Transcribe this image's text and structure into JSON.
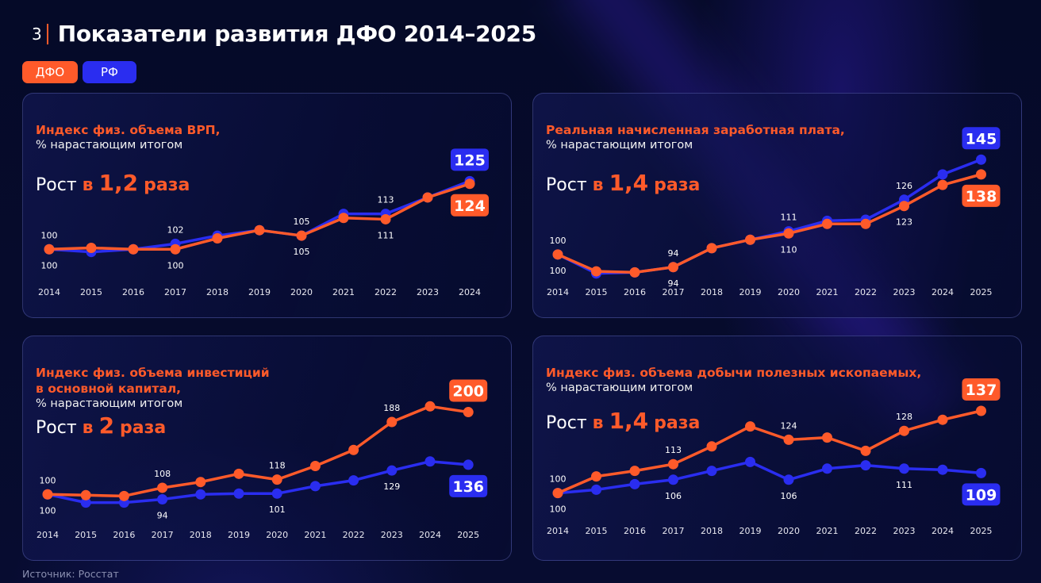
{
  "page": {
    "number": "3",
    "title": "Показатели развития ДФО 2014–2025",
    "source": "Источник: Росстат"
  },
  "legend": [
    {
      "label": "ДФО",
      "color": "#ff5a2a"
    },
    {
      "label": "РФ",
      "color": "#2a2df0"
    }
  ],
  "colors": {
    "dfo": "#ff5a2a",
    "rf": "#2a2df0",
    "text": "#ffffff",
    "background": "#060b2c"
  },
  "chart_data": [
    {
      "id": "grp",
      "type": "line",
      "title": "Индекс физ. объема ВРП,",
      "subtitle": "% нарастающим итогом",
      "growth": {
        "prefix": "Рост",
        "in": "в",
        "value": "1,2",
        "suffix": "раза"
      },
      "categories": [
        "2014",
        "2015",
        "2016",
        "2017",
        "2018",
        "2019",
        "2020",
        "2021",
        "2022",
        "2023",
        "2024"
      ],
      "ylim": [
        96,
        128
      ],
      "grid": false,
      "series": [
        {
          "name": "ДФО",
          "values": [
            100,
            100.5,
            100,
            100,
            104,
            107,
            105,
            111.5,
            111,
            119,
            124
          ]
        },
        {
          "name": "РФ",
          "values": [
            100,
            99,
            100,
            102,
            105,
            107,
            105,
            113,
            113,
            119,
            125
          ]
        }
      ],
      "point_labels": {
        "ДФО": [
          {
            "i": 0,
            "text": "100"
          },
          {
            "i": 3,
            "text": "100"
          },
          {
            "i": 6,
            "text": "105"
          },
          {
            "i": 8,
            "text": "111"
          }
        ],
        "РФ": [
          {
            "i": 0,
            "text": "100"
          },
          {
            "i": 3,
            "text": "102"
          },
          {
            "i": 6,
            "text": "105"
          },
          {
            "i": 8,
            "text": "113"
          }
        ]
      },
      "end_labels": {
        "ДФО": "124",
        "РФ": "125"
      },
      "label_pos": {
        "ДФО": "below",
        "РФ": "above"
      }
    },
    {
      "id": "salary",
      "type": "line",
      "title": "Реальная начисленная заработная плата,",
      "subtitle": "% нарастающим итогом",
      "growth": {
        "prefix": "Рост",
        "in": "в",
        "value": "1,4",
        "suffix": "раза"
      },
      "categories": [
        "2014",
        "2015",
        "2016",
        "2017",
        "2018",
        "2019",
        "2020",
        "2021",
        "2022",
        "2023",
        "2024",
        "2025"
      ],
      "ylim": [
        86,
        150
      ],
      "grid": false,
      "series": [
        {
          "name": "ДФО",
          "values": [
            100,
            92,
            91.5,
            94,
            103,
            107,
            110,
            114.5,
            114.5,
            123,
            133,
            138
          ]
        },
        {
          "name": "РФ",
          "values": [
            100,
            91,
            91.5,
            94,
            103,
            107,
            111,
            116,
            116.5,
            126,
            138,
            145
          ]
        }
      ],
      "point_labels": {
        "ДФО": [
          {
            "i": 0,
            "text": "100"
          },
          {
            "i": 3,
            "text": "94"
          },
          {
            "i": 6,
            "text": "110"
          },
          {
            "i": 9,
            "text": "123"
          }
        ],
        "РФ": [
          {
            "i": 0,
            "text": "100"
          },
          {
            "i": 3,
            "text": "94"
          },
          {
            "i": 6,
            "text": "111"
          },
          {
            "i": 9,
            "text": "126"
          }
        ]
      },
      "end_labels": {
        "ДФО": "138",
        "РФ": "145"
      },
      "label_pos": {
        "ДФО": "below",
        "РФ": "above"
      }
    },
    {
      "id": "investment",
      "type": "line",
      "title": "Индекс физ. объема инвестиций\nв основной капитал,",
      "subtitle": "% нарастающим итогом",
      "growth": {
        "prefix": "Рост",
        "in": "в",
        "value": "2",
        "suffix": "раза"
      },
      "categories": [
        "2014",
        "2015",
        "2016",
        "2017",
        "2018",
        "2019",
        "2020",
        "2021",
        "2022",
        "2023",
        "2024",
        "2025"
      ],
      "ylim": [
        80,
        215
      ],
      "grid": false,
      "series": [
        {
          "name": "ДФО",
          "values": [
            100,
            99,
            98,
            108,
            115,
            125,
            118,
            134.5,
            154,
            188,
            207,
            200
          ]
        },
        {
          "name": "РФ",
          "values": [
            100,
            90,
            90,
            94,
            100,
            101,
            101,
            110,
            117,
            129,
            140,
            136
          ]
        }
      ],
      "point_labels": {
        "ДФО": [
          {
            "i": 0,
            "text": "100"
          },
          {
            "i": 3,
            "text": "108"
          },
          {
            "i": 6,
            "text": "118"
          },
          {
            "i": 9,
            "text": "188"
          }
        ],
        "РФ": [
          {
            "i": 0,
            "text": "100"
          },
          {
            "i": 3,
            "text": "94"
          },
          {
            "i": 6,
            "text": "101"
          },
          {
            "i": 9,
            "text": "129"
          }
        ]
      },
      "end_labels": {
        "ДФО": "200",
        "РФ": "136"
      },
      "label_pos": {
        "ДФО": "above",
        "РФ": "below"
      }
    },
    {
      "id": "mining",
      "type": "line",
      "title": "Индекс физ. объема добычи полезных ископаемых,",
      "subtitle": "% нарастающим итогом",
      "growth": {
        "prefix": "Рост",
        "in": "в",
        "value": "1,4",
        "suffix": "раза"
      },
      "categories": [
        "2014",
        "2015",
        "2016",
        "2017",
        "2018",
        "2019",
        "2020",
        "2021",
        "2022",
        "2023",
        "2024",
        "2025"
      ],
      "ylim": [
        92,
        142
      ],
      "grid": false,
      "series": [
        {
          "name": "ДФО",
          "values": [
            100,
            107.5,
            110,
            113,
            121,
            130,
            124,
            125,
            119,
            128,
            133,
            137
          ]
        },
        {
          "name": "РФ",
          "values": [
            100,
            101.5,
            104,
            106,
            110,
            114,
            106,
            111,
            112.5,
            111,
            110.5,
            109
          ]
        }
      ],
      "point_labels": {
        "ДФО": [
          {
            "i": 0,
            "text": "100"
          },
          {
            "i": 3,
            "text": "113"
          },
          {
            "i": 6,
            "text": "124"
          },
          {
            "i": 9,
            "text": "128"
          }
        ],
        "РФ": [
          {
            "i": 0,
            "text": "100"
          },
          {
            "i": 3,
            "text": "106"
          },
          {
            "i": 6,
            "text": "106"
          },
          {
            "i": 9,
            "text": "111"
          }
        ]
      },
      "end_labels": {
        "ДФО": "137",
        "РФ": "109"
      },
      "label_pos": {
        "ДФО": "above",
        "РФ": "below"
      }
    }
  ]
}
